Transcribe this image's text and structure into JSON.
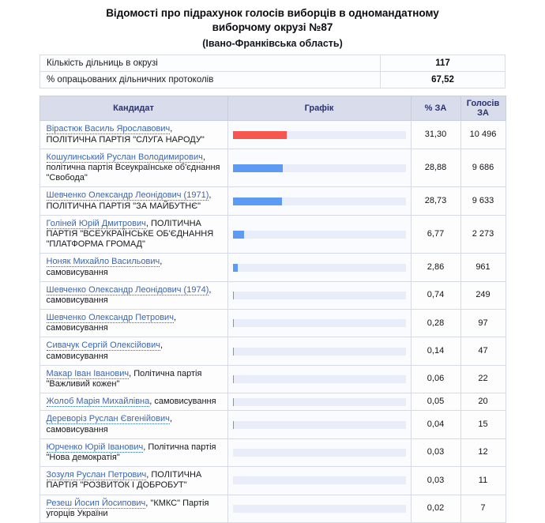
{
  "page": {
    "title": "Відомості про підрахунок голосів виборців в одномандатному виборчому окрузі №87",
    "subtitle": "(Івано-Франківська область)"
  },
  "summary": {
    "rows": [
      {
        "label": "Кількість дільниць в окрузі",
        "value": "117"
      },
      {
        "label": "% опрацьованих дільничних протоколів",
        "value": "67,52"
      }
    ]
  },
  "table": {
    "headers": {
      "candidate": "Кандидат",
      "graph": "Графік",
      "percent": "% ЗА",
      "votes": "Голосів ЗА"
    },
    "rows": [
      {
        "name": "Вірастюк Василь Ярославович",
        "party": ", ПОЛІТИЧНА ПАРТІЯ \"СЛУГА НАРОДУ\"",
        "percent_label": "31,30",
        "percent_value": 31.3,
        "votes": "10 496",
        "bar_color": "#f5564e"
      },
      {
        "name": "Кошулинський Руслан Володимирович",
        "party": ", політична партія Всеукраїнське об'єднання \"Свобода\"",
        "percent_label": "28,88",
        "percent_value": 28.88,
        "votes": "9 686",
        "bar_color": "#5d9af3"
      },
      {
        "name": "Шевченко Олександр Леонідович (1971)",
        "party": ", ПОЛІТИЧНА ПАРТІЯ \"ЗА МАЙБУТНЄ\"",
        "percent_label": "28,73",
        "percent_value": 28.73,
        "votes": "9 633",
        "bar_color": "#5d9af3"
      },
      {
        "name": "Голіней Юрій Дмитрович",
        "party": ", ПОЛІТИЧНА ПАРТІЯ \"ВСЕУКРАЇНСЬКЕ ОБ'ЄДНАННЯ \"ПЛАТФОРМА ГРОМАД\"",
        "percent_label": "6,77",
        "percent_value": 6.77,
        "votes": "2 273",
        "bar_color": "#5d9af3"
      },
      {
        "name": "Ноняк Михайло Васильович",
        "party": ", самовисування",
        "percent_label": "2,86",
        "percent_value": 2.86,
        "votes": "961",
        "bar_color": "#5d9af3"
      },
      {
        "name": "Шевченко Олександр Леонідович (1974)",
        "party": ", самовисування",
        "percent_label": "0,74",
        "percent_value": 0.74,
        "votes": "249",
        "bar_color": "#5d9af3"
      },
      {
        "name": "Шевченко Олександр Петрович",
        "party": ", самовисування",
        "percent_label": "0,28",
        "percent_value": 0.28,
        "votes": "97",
        "bar_color": "#5d9af3"
      },
      {
        "name": "Сивачук Сергій Олексійович",
        "party": ", самовисування",
        "percent_label": "0,14",
        "percent_value": 0.14,
        "votes": "47",
        "bar_color": "#5d9af3"
      },
      {
        "name": "Макар Іван Іванович",
        "party": ", Політична партія \"Важливий кожен\"",
        "percent_label": "0,06",
        "percent_value": 0.06,
        "votes": "22",
        "bar_color": "#5d9af3"
      },
      {
        "name": "Жолоб Марія Михайлівна",
        "party": ", самовисування",
        "percent_label": "0,05",
        "percent_value": 0.05,
        "votes": "20",
        "bar_color": "#5d9af3"
      },
      {
        "name": "Дереворіз Руслан Євгенійович",
        "party": ", самовисування",
        "percent_label": "0,04",
        "percent_value": 0.04,
        "votes": "15",
        "bar_color": "#5d9af3"
      },
      {
        "name": "Юрченко Юрій Іванович",
        "party": ", Політична партія \"Нова демократія\"",
        "percent_label": "0,03",
        "percent_value": 0.03,
        "votes": "12",
        "bar_color": "#5d9af3"
      },
      {
        "name": "Зозуля Руслан Петрович",
        "party": ", ПОЛІТИЧНА ПАРТІЯ \"РОЗВИТОК І ДОБРОБУТ\"",
        "percent_label": "0,03",
        "percent_value": 0.03,
        "votes": "11",
        "bar_color": "#5d9af3"
      },
      {
        "name": "Резеш Йосип Йосипович",
        "party": ", \"КМКС\" Партія угорців України",
        "percent_label": "0,02",
        "percent_value": 0.02,
        "votes": "7",
        "bar_color": "#5d9af3"
      }
    ]
  },
  "colors": {
    "bar_leader": "#f5564e",
    "bar_default": "#5d9af3",
    "bar_track": "#e8edf9",
    "header_bg": "#d9dcea",
    "header_text": "#2a3170",
    "link": "#3c67ad"
  }
}
